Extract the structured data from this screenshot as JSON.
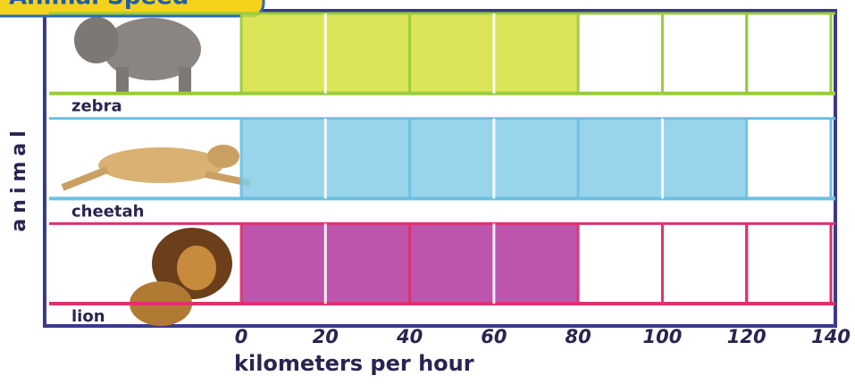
{
  "chart_data": {
    "type": "bar",
    "orientation": "horizontal",
    "title": "Animal Speed",
    "categories": [
      "zebra",
      "cheetah",
      "lion"
    ],
    "values": [
      80,
      120,
      80
    ],
    "colors": [
      "#d6df3a",
      "#86cde6",
      "#b2379f"
    ],
    "border_colors": [
      "#98cc3a",
      "#6cc0e4",
      "#e0306a"
    ],
    "xlim": [
      0,
      140
    ],
    "xticks": [
      0,
      20,
      40,
      60,
      80,
      100,
      120,
      140
    ],
    "xlabel": "kilometers per hour",
    "ylabel": "animal",
    "grid": true
  }
}
